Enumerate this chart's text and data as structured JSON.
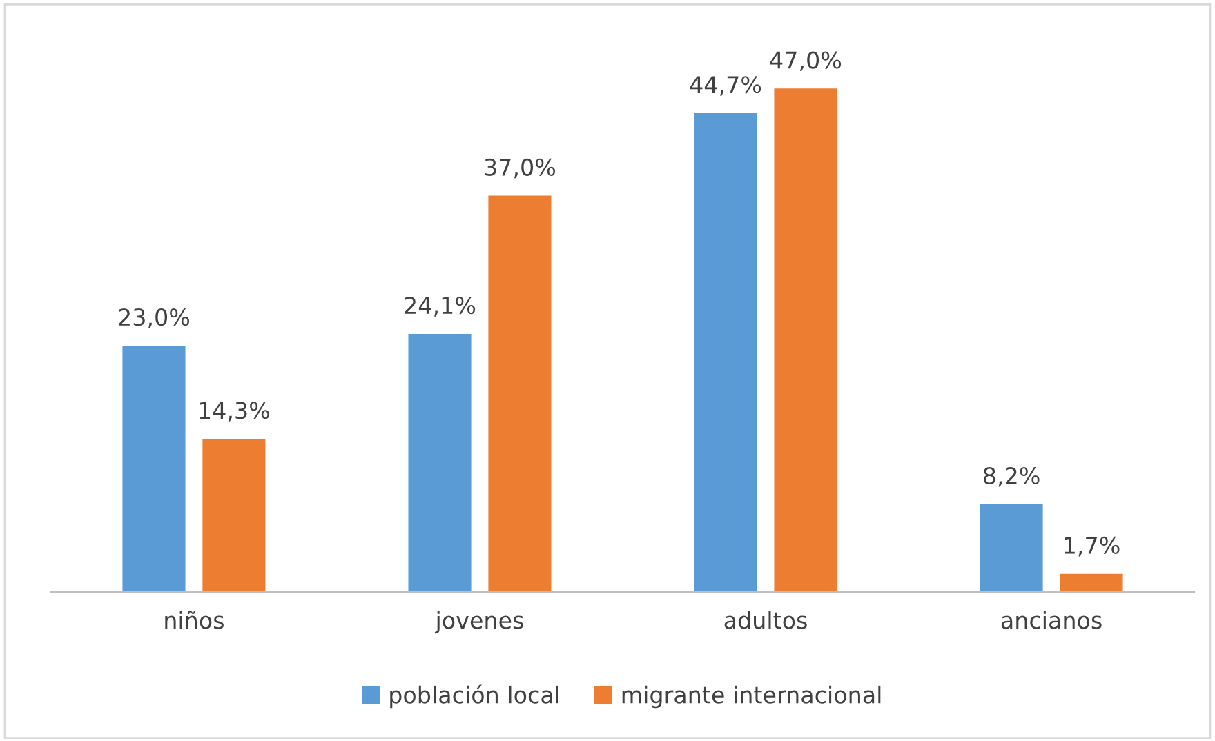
{
  "chart_data": {
    "type": "bar",
    "categories": [
      "niños",
      "jovenes",
      "adultos",
      "ancianos"
    ],
    "series": [
      {
        "name": "población local",
        "color": "#5b9bd5",
        "values": [
          23.0,
          24.1,
          44.7,
          8.2
        ],
        "value_labels": [
          "23,0%",
          "24,1%",
          "44,7%",
          "8,2%"
        ]
      },
      {
        "name": "migrante internacional",
        "color": "#ed7d31",
        "values": [
          14.3,
          37.0,
          47.0,
          1.7
        ],
        "value_labels": [
          "14,3%",
          "37,0%",
          "47,0%",
          "1,7%"
        ]
      }
    ],
    "legend": "bottom"
  }
}
